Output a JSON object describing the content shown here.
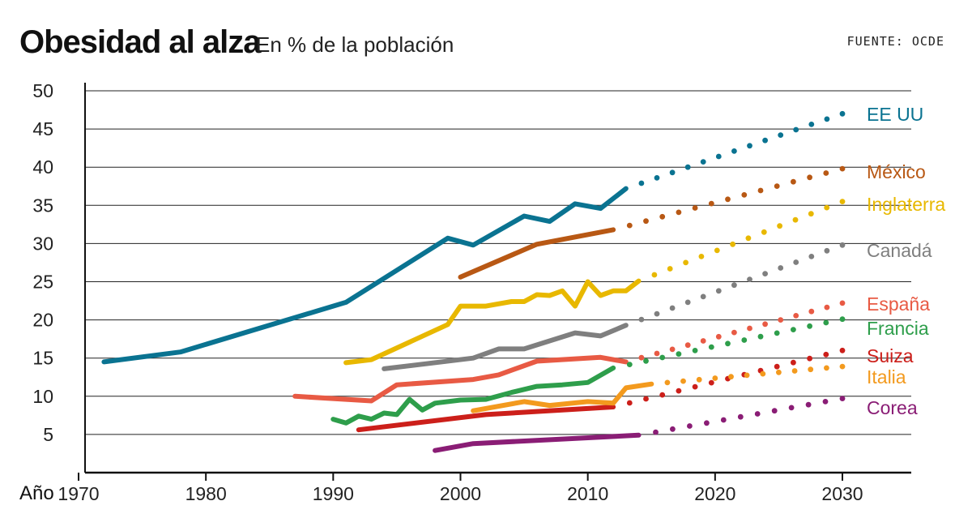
{
  "header": {
    "title": "Obesidad al alza",
    "subtitle": "En % de la población",
    "source": "FUENTE: OCDE"
  },
  "chart_data": {
    "type": "line",
    "title": "Obesidad al alza",
    "subtitle": "En % de la población",
    "xlabel": "Año",
    "ylabel": "",
    "xlim": [
      1970,
      2035
    ],
    "ylim": [
      0,
      50
    ],
    "xticks": [
      1970,
      1980,
      1990,
      2000,
      2010,
      2020,
      2030
    ],
    "yticks": [
      5,
      10,
      15,
      20,
      25,
      30,
      35,
      40,
      45,
      50
    ],
    "grid": "horizontal",
    "series": [
      {
        "name": "EE UU",
        "color": "#0a7391",
        "observed": [
          [
            1972,
            14.5
          ],
          [
            1978,
            15.8
          ],
          [
            1991,
            22.3
          ],
          [
            1999,
            30.7
          ],
          [
            2001,
            29.8
          ],
          [
            2005,
            33.6
          ],
          [
            2007,
            32.9
          ],
          [
            2009,
            35.2
          ],
          [
            2011,
            34.6
          ],
          [
            2013,
            37.2
          ]
        ],
        "projection_end": [
          2030,
          47
        ]
      },
      {
        "name": "México",
        "color": "#b85814",
        "observed": [
          [
            2000,
            25.6
          ],
          [
            2006,
            29.9
          ],
          [
            2012,
            31.8
          ]
        ],
        "projection_end": [
          2030,
          39.8
        ]
      },
      {
        "name": "Inglaterra",
        "color": "#e8b800",
        "observed": [
          [
            1991,
            14.4
          ],
          [
            1993,
            14.8
          ],
          [
            1999,
            19.4
          ],
          [
            2000,
            21.8
          ],
          [
            2002,
            21.8
          ],
          [
            2004,
            22.4
          ],
          [
            2005,
            22.4
          ],
          [
            2006,
            23.3
          ],
          [
            2007,
            23.2
          ],
          [
            2008,
            23.8
          ],
          [
            2009,
            21.8
          ],
          [
            2010,
            25
          ],
          [
            2011,
            23.2
          ],
          [
            2012,
            23.8
          ],
          [
            2013,
            23.8
          ],
          [
            2014,
            25.1
          ]
        ],
        "projection_end": [
          2030,
          35.5
        ]
      },
      {
        "name": "Canadá",
        "color": "#7f7f7f",
        "observed": [
          [
            1994,
            13.6
          ],
          [
            2001,
            15
          ],
          [
            2003,
            16.2
          ],
          [
            2005,
            16.2
          ],
          [
            2009,
            18.3
          ],
          [
            2011,
            17.9
          ],
          [
            2013,
            19.3
          ]
        ],
        "projection_end": [
          2030,
          29.8
        ]
      },
      {
        "name": "España",
        "color": "#e85a44",
        "observed": [
          [
            1987,
            10
          ],
          [
            1993,
            9.4
          ],
          [
            1995,
            11.5
          ],
          [
            2001,
            12.2
          ],
          [
            2003,
            12.8
          ],
          [
            2006,
            14.6
          ],
          [
            2011,
            15.1
          ],
          [
            2013,
            14.5
          ]
        ],
        "projection_end": [
          2030,
          22.2
        ]
      },
      {
        "name": "Francia",
        "color": "#2e9e4b",
        "observed": [
          [
            1990,
            7
          ],
          [
            1991,
            6.5
          ],
          [
            1992,
            7.4
          ],
          [
            1993,
            7
          ],
          [
            1994,
            7.8
          ],
          [
            1995,
            7.6
          ],
          [
            1996,
            9.6
          ],
          [
            1997,
            8.2
          ],
          [
            1998,
            9.1
          ],
          [
            2000,
            9.5
          ],
          [
            2002,
            9.6
          ],
          [
            2004,
            10.5
          ],
          [
            2006,
            11.3
          ],
          [
            2008,
            11.5
          ],
          [
            2010,
            11.8
          ],
          [
            2012,
            13.7
          ]
        ],
        "projection_end": [
          2030,
          20.1
        ]
      },
      {
        "name": "Suiza",
        "color": "#cc1f1a",
        "observed": [
          [
            1992,
            5.6
          ],
          [
            2002,
            7.6
          ],
          [
            2012,
            8.6
          ]
        ],
        "projection_end": [
          2030,
          16
        ]
      },
      {
        "name": "Italia",
        "color": "#f39a1e",
        "observed": [
          [
            2001,
            8.1
          ],
          [
            2005,
            9.3
          ],
          [
            2007,
            8.8
          ],
          [
            2010,
            9.3
          ],
          [
            2012,
            9.1
          ],
          [
            2013,
            11.1
          ],
          [
            2015,
            11.6
          ]
        ],
        "projection_end": [
          2030,
          13.9
        ]
      },
      {
        "name": "Corea",
        "color": "#8a1d75",
        "observed": [
          [
            1998,
            2.9
          ],
          [
            2001,
            3.8
          ],
          [
            2014,
            4.9
          ]
        ],
        "projection_end": [
          2030,
          9.7
        ]
      }
    ]
  }
}
